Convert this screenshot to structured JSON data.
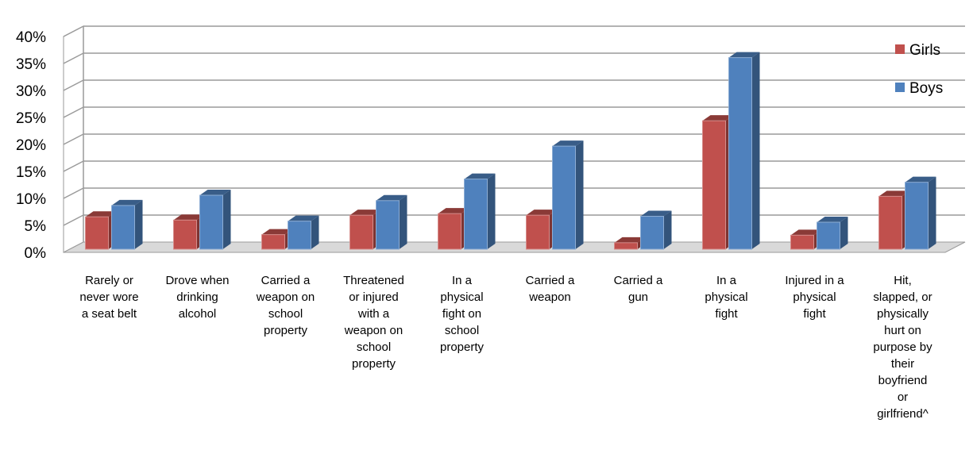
{
  "chart_data": {
    "type": "bar",
    "style": "3d-clustered-column",
    "title": "",
    "xlabel": "",
    "ylabel": "",
    "ylim": [
      0,
      40
    ],
    "y_ticks": [
      "0%",
      "5%",
      "10%",
      "15%",
      "20%",
      "25%",
      "30%",
      "35%",
      "40%"
    ],
    "grid": true,
    "legend_position": "top-right",
    "categories": [
      [
        "Rarely or",
        "never wore",
        "a seat belt"
      ],
      [
        "Drove when",
        "drinking",
        "alcohol"
      ],
      [
        "Carried a",
        "weapon on",
        "school",
        "property"
      ],
      [
        "Threatened",
        "or injured",
        "with a",
        "weapon on",
        "school",
        "property"
      ],
      [
        "In a",
        "physical",
        "fight on",
        "school",
        "property"
      ],
      [
        "Carried a",
        "weapon"
      ],
      [
        "Carried a",
        "gun"
      ],
      [
        "In a",
        "physical",
        "fight"
      ],
      [
        "Injured in a",
        "physical",
        "fight"
      ],
      [
        "Hit,",
        "slapped, or",
        "physically",
        "hurt on",
        "purpose by",
        "their",
        "boyfriend",
        "or",
        "girlfriend^"
      ]
    ],
    "series": [
      {
        "name": "Girls",
        "color": "#C0504D",
        "values": [
          6.0,
          5.4,
          2.7,
          6.3,
          6.6,
          6.3,
          1.2,
          23.8,
          2.6,
          9.8
        ]
      },
      {
        "name": "Boys",
        "color": "#4F81BD",
        "values": [
          8.1,
          10.0,
          5.2,
          9.0,
          13.0,
          19.1,
          6.1,
          35.5,
          5.0,
          12.4
        ]
      }
    ]
  }
}
